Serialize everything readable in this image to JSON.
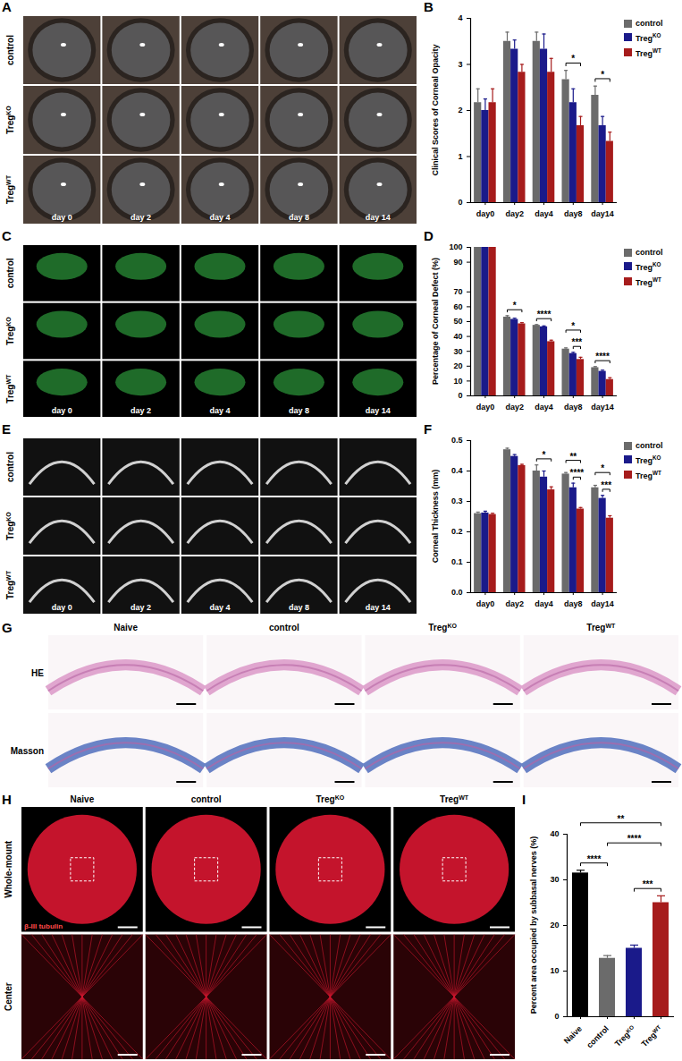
{
  "chart_data": [
    {
      "panel_label": "B",
      "type": "bar",
      "y_label": "Clinical Scores of Corneal Opacity",
      "categories": [
        "day0",
        "day2",
        "day4",
        "day8",
        "day14"
      ],
      "series": [
        {
          "name": "control",
          "color": "#6b6b6b",
          "values": [
            2.17,
            3.5,
            3.5,
            2.67,
            2.33
          ],
          "errors": [
            0.3,
            0.2,
            0.2,
            0.2,
            0.2
          ]
        },
        {
          "name": "TregKO",
          "color": "#1a1a8a",
          "values": [
            2.0,
            3.33,
            3.33,
            2.17,
            1.67
          ],
          "errors": [
            0.25,
            0.2,
            0.33,
            0.3,
            0.2
          ]
        },
        {
          "name": "TregWT",
          "color": "#a61c1c",
          "values": [
            2.17,
            2.83,
            2.83,
            1.67,
            1.33
          ],
          "errors": [
            0.3,
            0.17,
            0.3,
            0.2,
            0.2
          ]
        }
      ],
      "ylim": [
        0,
        4
      ],
      "yticks": [
        0,
        1,
        2,
        3,
        4
      ],
      "legend": "right",
      "significance": [
        {
          "category": "day8",
          "from": "control",
          "to": "TregWT",
          "label": "*"
        },
        {
          "category": "day14",
          "from": "control",
          "to": "TregWT",
          "label": "*"
        }
      ]
    },
    {
      "panel_label": "D",
      "type": "bar",
      "y_label": "Percentage of Corneal Defect (%)",
      "categories": [
        "day0",
        "day2",
        "day4",
        "day8",
        "day14"
      ],
      "series": [
        {
          "name": "control",
          "color": "#6b6b6b",
          "values": [
            100,
            53,
            47.5,
            31.5,
            19
          ],
          "errors": [
            0,
            1,
            0.5,
            0.8,
            0.7
          ]
        },
        {
          "name": "TregKO",
          "color": "#1a1a8a",
          "values": [
            100,
            51.5,
            46.5,
            28.5,
            16.5
          ],
          "errors": [
            0,
            0.8,
            0.6,
            0.8,
            0.8
          ]
        },
        {
          "name": "TregWT",
          "color": "#a61c1c",
          "values": [
            100,
            48.5,
            36.5,
            24.5,
            11
          ],
          "errors": [
            0,
            0.8,
            1,
            1.5,
            1.2
          ]
        }
      ],
      "ylim": [
        0,
        100
      ],
      "yticks": [
        0,
        10,
        20,
        30,
        40,
        50,
        60,
        70,
        90,
        100
      ],
      "legend": "right",
      "significance": [
        {
          "category": "day2",
          "from": "control",
          "to": "TregWT",
          "label": "*"
        },
        {
          "category": "day4",
          "from": "control",
          "to": "TregWT",
          "label": "****"
        },
        {
          "category": "day8",
          "from": "TregKO",
          "to": "TregWT",
          "label": "***"
        },
        {
          "category": "day8",
          "from": "control",
          "to": "TregWT",
          "label": "*"
        },
        {
          "category": "day14",
          "from": "control",
          "to": "TregWT",
          "label": "****"
        }
      ]
    },
    {
      "panel_label": "F",
      "type": "bar",
      "y_label": "Corneal Thickness (mm)",
      "categories": [
        "day0",
        "day2",
        "day4",
        "day8",
        "day14"
      ],
      "series": [
        {
          "name": "control",
          "color": "#6b6b6b",
          "values": [
            0.26,
            0.47,
            0.4,
            0.39,
            0.345
          ],
          "errors": [
            0.005,
            0.005,
            0.02,
            0.005,
            0.008
          ]
        },
        {
          "name": "TregKO",
          "color": "#1a1a8a",
          "values": [
            0.262,
            0.448,
            0.38,
            0.345,
            0.31
          ],
          "errors": [
            0.006,
            0.006,
            0.02,
            0.015,
            0.01
          ]
        },
        {
          "name": "TregWT",
          "color": "#a61c1c",
          "values": [
            0.257,
            0.418,
            0.338,
            0.275,
            0.245
          ],
          "errors": [
            0.004,
            0.004,
            0.01,
            0.005,
            0.008
          ]
        }
      ],
      "ylim": [
        0,
        0.5
      ],
      "yticks": [
        {
          "value": 0,
          "label": "0.0"
        },
        0.1,
        0.2,
        0.3,
        0.4,
        0.5
      ],
      "legend": "right",
      "significance": [
        {
          "category": "day4",
          "from": "control",
          "to": "TregWT",
          "label": "*"
        },
        {
          "category": "day8",
          "from": "TregKO",
          "to": "TregWT",
          "label": "****"
        },
        {
          "category": "day8",
          "from": "control",
          "to": "TregWT",
          "label": "**"
        },
        {
          "category": "day14",
          "from": "TregKO",
          "to": "TregWT",
          "label": "***"
        },
        {
          "category": "day14",
          "from": "control",
          "to": "TregWT",
          "label": "*"
        }
      ]
    },
    {
      "panel_label": "I",
      "type": "bar",
      "y_label": "Percent area occupied by subbasal nerves (%)",
      "categories": [
        "Naive",
        "control",
        "TregKO",
        "TregWT"
      ],
      "values": [
        31.5,
        12.8,
        15,
        25
      ],
      "errors": [
        0.6,
        0.6,
        0.7,
        1.5
      ],
      "colors": [
        "#000000",
        "#6b6b6b",
        "#1a1a8a",
        "#a61c1c"
      ],
      "ylim": [
        0,
        40
      ],
      "yticks": [
        0,
        10,
        20,
        30,
        40
      ],
      "significance": [
        {
          "from": "TregKO",
          "to": "TregWT",
          "label": "***"
        },
        {
          "from": "Naive",
          "to": "control",
          "label": "****"
        },
        {
          "from": "control",
          "to": "TregWT",
          "label": "****"
        },
        {
          "from": "Naive",
          "to": "TregWT",
          "label": "**"
        }
      ]
    }
  ],
  "image_panels": [
    {
      "panel_label": "A",
      "row_labels": [
        "control",
        "TregKO",
        "TregWT"
      ],
      "column_labels": [
        "day 0",
        "day 2",
        "day 4",
        "day 8",
        "day 14"
      ]
    },
    {
      "panel_label": "C",
      "row_labels": [
        "control",
        "TregKO",
        "TregWT"
      ],
      "column_labels": [
        "day 0",
        "day 2",
        "day 4",
        "day 8",
        "day 14"
      ]
    },
    {
      "panel_label": "E",
      "row_labels": [
        "control",
        "TregKO",
        "TregWT"
      ],
      "column_labels": [
        "day 0",
        "day 2",
        "day 4",
        "day 8",
        "day 14"
      ]
    },
    {
      "panel_label": "G",
      "row_labels": [
        "HE",
        "Masson"
      ],
      "column_labels": [
        "Naive",
        "control",
        "TregKO",
        "TregWT"
      ]
    },
    {
      "panel_label": "H",
      "row_labels": [
        "Whole-mount",
        "Center"
      ],
      "column_labels": [
        "Naive",
        "control",
        "TregKO",
        "TregWT"
      ],
      "stain_label": "β-III tubulin"
    }
  ]
}
